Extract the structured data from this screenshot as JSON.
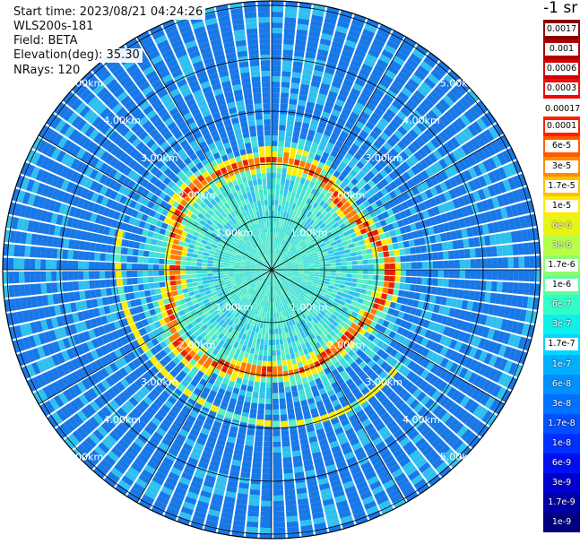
{
  "info": {
    "start_time": "Start time: 2023/08/21 04:24:26",
    "lidar": "WLS200s-181",
    "field": "Field: BETA",
    "elevation": "Elevation(deg): 35.30",
    "nrays": "NRays: 120"
  },
  "colorbar": {
    "title": "-1 sr",
    "top_group": [
      {
        "label": "0.0017",
        "color": "#8b0000"
      },
      {
        "label": "0.001",
        "color": "#b00000"
      },
      {
        "label": "0.0006",
        "color": "#d40000"
      },
      {
        "label": "0.0003",
        "color": "#f20a0a"
      }
    ],
    "threshold_label": "0.00017",
    "main_group": [
      {
        "label": "0.0001",
        "color": "#ff2000"
      },
      {
        "label": "6e-5",
        "color": "#ff5a00"
      },
      {
        "label": "3e-5",
        "color": "#ff8c00"
      },
      {
        "label": "1.7e-5",
        "color": "#ffc000"
      },
      {
        "label": "1e-5",
        "color": "#ffea00"
      },
      {
        "label": "6e-6",
        "color": "#e6f516"
      },
      {
        "label": "3e-6",
        "color": "#b6ff48"
      },
      {
        "label": "1.7e-6",
        "color": "#8cff6e"
      },
      {
        "label": "1e-6",
        "color": "#5cffa0"
      },
      {
        "label": "6e-7",
        "color": "#32ffc8"
      },
      {
        "label": "3e-7",
        "color": "#10f0e8"
      },
      {
        "label": "1.7e-7",
        "color": "#00d8ff"
      },
      {
        "label": "1e-7",
        "color": "#00b0ff"
      },
      {
        "label": "6e-8",
        "color": "#0090ff"
      },
      {
        "label": "3e-8",
        "color": "#0072ff"
      },
      {
        "label": "1.7e-8",
        "color": "#0050ff"
      },
      {
        "label": "1e-8",
        "color": "#0030ff"
      },
      {
        "label": "6e-9",
        "color": "#0010f0"
      },
      {
        "label": "3e-9",
        "color": "#0000d0"
      },
      {
        "label": "1.7e-9",
        "color": "#0000a8"
      },
      {
        "label": "1e-9",
        "color": "#000080"
      }
    ]
  },
  "range_labels": {
    "r1": "1.00km",
    "r2": "2.00km",
    "r3": "3.00km",
    "r4": "4.00km",
    "r5": "5.00km"
  },
  "scan": {
    "ring_values": [
      {
        "from_km": 0.0,
        "to_km": 0.5,
        "level": "3e-7"
      },
      {
        "from_km": 0.5,
        "to_km": 1.0,
        "level": "6e-7"
      },
      {
        "from_km": 1.0,
        "to_km": 1.5,
        "level": "1e-6"
      },
      {
        "from_km": 1.5,
        "to_km": 1.85,
        "level": "3e-7"
      },
      {
        "from_km": 1.85,
        "to_km": 2.05,
        "level": "6e-5"
      },
      {
        "from_km": 2.05,
        "to_km": 3.0,
        "level": "1e-7"
      },
      {
        "from_km": 3.0,
        "to_km": 5.5,
        "level": "3e-8"
      }
    ],
    "colors": {
      "background_blue": "#1878e8",
      "cyan": "#30c0f0",
      "inner_cyan": "#40e0d8",
      "aqua": "#60f0c0",
      "yellow": "#ffee00",
      "orange": "#ff7a00",
      "red": "#e82000"
    }
  }
}
